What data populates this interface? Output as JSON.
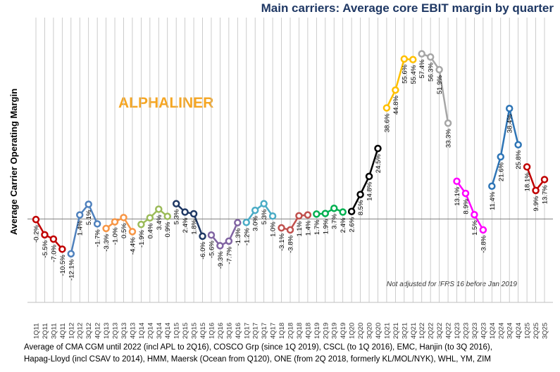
{
  "chart_data": {
    "type": "line",
    "title": "Main carriers: Average core EBIT margin by quarter",
    "y_label": "Average Carrier Operating Margin",
    "annotations": [
      "ALPHALINER",
      "Not adjusted for IFRS 16 before Jan 2019"
    ],
    "footnote": [
      "Average of CMA CGM until 2022 (incl APL to 2Q16), COSCO Grp (since 1Q 2019), CSCL (to 1Q 2016), EMC, Hanjin (to 3Q 2016),",
      "Hapag-Lloyd (incl CSAV to 2014), HMM, Maersk (Ocean from Q120), ONE (from 2Q 2018, formerly KL/MOL/NYK), WHL, YM, ZIM"
    ],
    "categories": [
      "1Q11",
      "2Q11",
      "3Q11",
      "4Q11",
      "1Q12",
      "2Q12",
      "3Q12",
      "4Q12",
      "1Q13",
      "2Q13",
      "3Q13",
      "4Q13",
      "1Q14",
      "2Q14",
      "3Q14",
      "4Q14",
      "1Q15",
      "2Q15",
      "3Q15",
      "4Q15",
      "1Q16",
      "2Q16",
      "3Q16",
      "4Q16",
      "1Q17",
      "2Q17",
      "3Q17",
      "4Q17",
      "1Q18",
      "2Q18",
      "3Q18",
      "4Q18",
      "1Q19",
      "2Q19",
      "3Q19",
      "4Q19",
      "1Q20",
      "2Q20",
      "3Q20",
      "4Q20",
      "1Q21",
      "2Q21",
      "3Q21",
      "4Q21",
      "1Q22",
      "2Q22",
      "3Q22",
      "4Q22",
      "1Q23",
      "2Q23",
      "3Q23",
      "4Q23",
      "1Q24",
      "2Q24",
      "3Q24",
      "4Q24",
      "1Q25",
      "2Q25",
      "3Q25"
    ],
    "values": [
      -0.2,
      -5.5,
      -7.0,
      -10.5,
      -12.1,
      1.4,
      5.1,
      -1.7,
      -3.3,
      -1.0,
      0.5,
      -4.4,
      -1.9,
      0.4,
      3.4,
      0.9,
      5.3,
      2.4,
      1.8,
      -6.0,
      -5.6,
      -9.3,
      -7.7,
      -1.3,
      -1.2,
      3.0,
      5.3,
      1.0,
      -3.1,
      -3.8,
      1.1,
      1.4,
      1.7,
      1.9,
      3.7,
      2.4,
      2.6,
      8.5,
      14.8,
      24.5,
      38.6,
      44.8,
      55.6,
      55.4,
      57.4,
      56.3,
      51.9,
      33.3,
      13.1,
      8.9,
      1.5,
      -3.8,
      11.4,
      21.6,
      38.4,
      25.8,
      18.1,
      9.9,
      13.7
    ],
    "value_labels": [
      "-0.2%",
      "-5.5%",
      "-7.0%",
      "-10.5%",
      "-12.1%",
      "1.4%",
      "5.1%",
      "-1.7%",
      "-3.3%",
      "-1.0%",
      "0.5%",
      "-4.4%",
      "-1.9%",
      "0.4%",
      "3.4%",
      "0.9%",
      "5.3%",
      "2.4%",
      "1.8%",
      "-6.0%",
      "-5.6%",
      "-9.3%",
      "-7.7%",
      "-1.3%",
      "-1.2%",
      "3.0%",
      "5.3%",
      "1.0%",
      "-3.1%",
      "-3.8%",
      "1.1%",
      "1.4%",
      "1.7%",
      "1.9%",
      "3.7%",
      "2.4%",
      "2.6%",
      "8.5%",
      "14.8%",
      "24.5%",
      "38.6%",
      "44.8%",
      "55.6%",
      "55.4%",
      "57.4%",
      "56.3%",
      "51.9%",
      "33.3%",
      "13.1%",
      "8.9%",
      "1.5%",
      "-3.8%",
      "11.4%",
      "21.6%",
      "38.4%",
      "25.8%",
      "18.1%",
      "9.9%",
      "13.7%"
    ],
    "colors": [
      "#c00000",
      "#c00000",
      "#c00000",
      "#c00000",
      "#4f81bd",
      "#4f81bd",
      "#4f81bd",
      "#4f81bd",
      "#f79646",
      "#f79646",
      "#f79646",
      "#f79646",
      "#9bbb59",
      "#9bbb59",
      "#9bbb59",
      "#9bbb59",
      "#1f3864",
      "#1f3864",
      "#1f3864",
      "#1f3864",
      "#8064a2",
      "#8064a2",
      "#8064a2",
      "#8064a2",
      "#4bacc6",
      "#4bacc6",
      "#4bacc6",
      "#4bacc6",
      "#c0504d",
      "#c0504d",
      "#c0504d",
      "#c0504d",
      "#00b050",
      "#00b050",
      "#00b050",
      "#00b050",
      "#000000",
      "#000000",
      "#000000",
      "#000000",
      "#ffc000",
      "#ffc000",
      "#ffc000",
      "#ffc000",
      "#a6a6a6",
      "#a6a6a6",
      "#a6a6a6",
      "#a6a6a6",
      "#ff00ff",
      "#ff00ff",
      "#ff00ff",
      "#ff00ff",
      "#2e75b6",
      "#2e75b6",
      "#2e75b6",
      "#2e75b6",
      "#c00000",
      "#c00000",
      "#c00000"
    ],
    "ylim": [
      -29,
      70
    ],
    "xgrid": true
  }
}
